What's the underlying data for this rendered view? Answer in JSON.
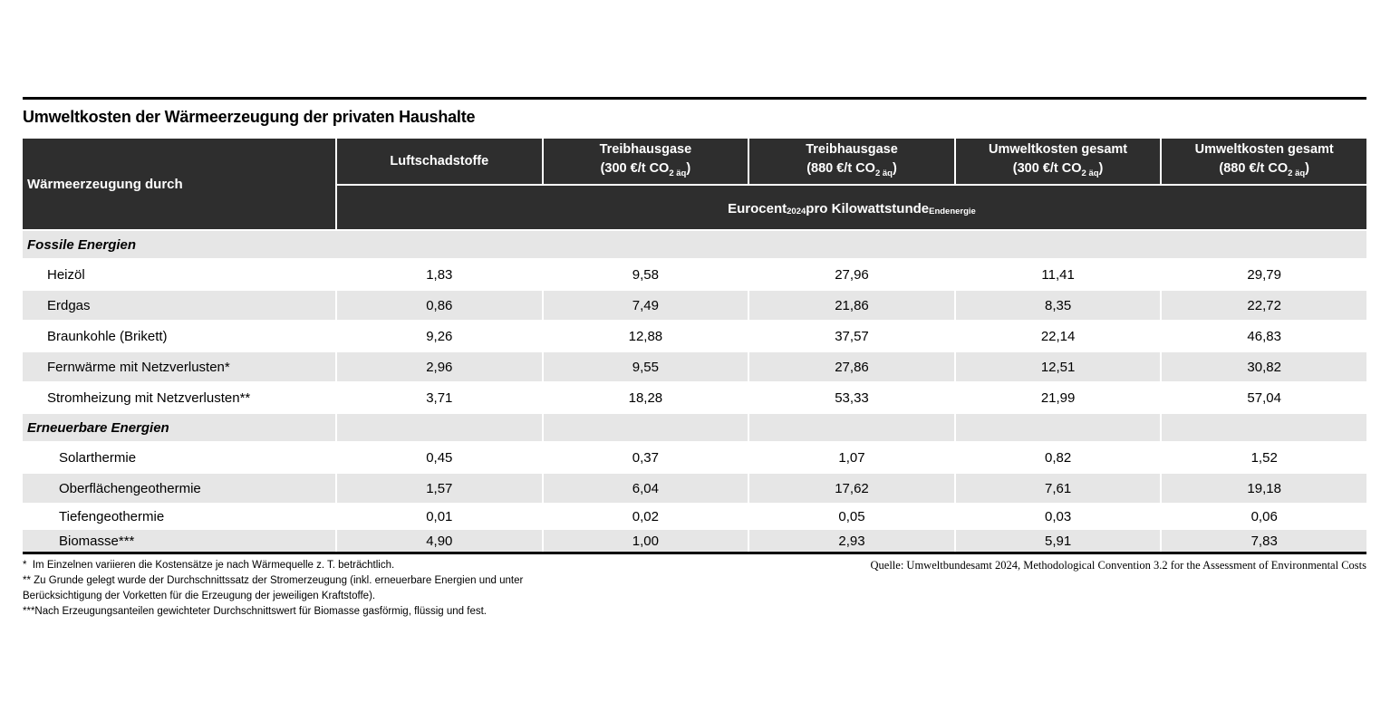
{
  "title": "Umweltkosten der Wärmeerzeugung der privaten Haushalte",
  "colors": {
    "header_bg": "#2e2e2e",
    "header_text": "#ffffff",
    "shaded_row_bg": "#e6e6e6",
    "rule": "#000000",
    "body_text": "#000000"
  },
  "table": {
    "corner_header": "Wärmeerzeugung durch",
    "columns": [
      {
        "line1": "Luftschadstoffe",
        "line2_prefix": "",
        "line2_sub": "",
        "line2_suffix": ""
      },
      {
        "line1": "Treibhausgase",
        "line2_prefix": "(300 €/t CO",
        "line2_sub": "2 äq",
        "line2_suffix": ")"
      },
      {
        "line1": "Treibhausgase",
        "line2_prefix": "(880 €/t CO",
        "line2_sub": "2 äq",
        "line2_suffix": ")"
      },
      {
        "line1": "Umweltkosten gesamt",
        "line2_prefix": "(300 €/t CO",
        "line2_sub": "2 äq",
        "line2_suffix": ")"
      },
      {
        "line1": "Umweltkosten gesamt",
        "line2_prefix": "(880 €/t CO",
        "line2_sub": "2 äq",
        "line2_suffix": ")"
      }
    ],
    "unit_row": {
      "p1": "Eurocent",
      "s1": "2024",
      "p2": " pro Kilowattstunde",
      "s2": "Endenergie"
    },
    "rows": [
      {
        "type": "section",
        "label": "Fossile Energien",
        "merged": true
      },
      {
        "type": "data",
        "label": "Heizöl",
        "values": [
          "1,83",
          "9,58",
          "27,96",
          "11,41",
          "29,79"
        ],
        "shaded": false
      },
      {
        "type": "data",
        "label": "Erdgas",
        "values": [
          "0,86",
          "7,49",
          "21,86",
          "8,35",
          "22,72"
        ],
        "shaded": true
      },
      {
        "type": "data",
        "label": "Braunkohle (Brikett)",
        "values": [
          "9,26",
          "12,88",
          "37,57",
          "22,14",
          "46,83"
        ],
        "shaded": false
      },
      {
        "type": "data",
        "label": "Fernwärme mit Netzverlusten*",
        "values": [
          "2,96",
          "9,55",
          "27,86",
          "12,51",
          "30,82"
        ],
        "shaded": true
      },
      {
        "type": "data",
        "label": "Stromheizung mit Netzverlusten**",
        "values": [
          "3,71",
          "18,28",
          "53,33",
          "21,99",
          "57,04"
        ],
        "shaded": false
      },
      {
        "type": "section",
        "label": "Erneuerbare Energien",
        "merged": false
      },
      {
        "type": "data",
        "label": "Solarthermie",
        "values": [
          "0,45",
          "0,37",
          "1,07",
          "0,82",
          "1,52"
        ],
        "shaded": false
      },
      {
        "type": "data",
        "label": "Oberflächengeothermie",
        "values": [
          "1,57",
          "6,04",
          "17,62",
          "7,61",
          "19,18"
        ],
        "shaded": true
      },
      {
        "type": "data",
        "label": "Tiefengeothermie",
        "values": [
          "0,01",
          "0,02",
          "0,05",
          "0,03",
          "0,06"
        ],
        "shaded": false
      },
      {
        "type": "data",
        "label": "Biomasse***",
        "values": [
          "4,90",
          "1,00",
          "2,93",
          "5,91",
          "7,83"
        ],
        "shaded": true
      }
    ]
  },
  "footnotes": [
    "*  Im Einzelnen variieren die Kostensätze je nach Wärmequelle z. T. beträchtlich.",
    "** Zu Grunde gelegt wurde der Durchschnittssatz der Stromerzeugung (inkl. erneuerbare Energien und unter",
    "Berücksichtigung der Vorketten für die Erzeugung der jeweiligen Kraftstoffe).",
    "***Nach Erzeugungsanteilen gewichteter Durchschnittswert für Biomasse gasförmig, flüssig und fest."
  ],
  "source": "Quelle: Umweltbundesamt 2024, Methodological Convention 3.2 for the Assessment of Environmental Costs",
  "chart_data": {
    "type": "table",
    "title": "Umweltkosten der Wärmeerzeugung der privaten Haushalte",
    "unit": "Eurocent 2024 pro Kilowattstunde Endenergie",
    "columns": [
      "Luftschadstoffe",
      "Treibhausgase (300 €/t CO2 äq)",
      "Treibhausgase (880 €/t CO2 äq)",
      "Umweltkosten gesamt (300 €/t CO2 äq)",
      "Umweltkosten gesamt (880 €/t CO2 äq)"
    ],
    "row_header": "Wärmeerzeugung durch",
    "sections": [
      {
        "name": "Fossile Energien",
        "rows": [
          {
            "label": "Heizöl",
            "values": [
              1.83,
              9.58,
              27.96,
              11.41,
              29.79
            ]
          },
          {
            "label": "Erdgas",
            "values": [
              0.86,
              7.49,
              21.86,
              8.35,
              22.72
            ]
          },
          {
            "label": "Braunkohle (Brikett)",
            "values": [
              9.26,
              12.88,
              37.57,
              22.14,
              46.83
            ]
          },
          {
            "label": "Fernwärme mit Netzverlusten*",
            "values": [
              2.96,
              9.55,
              27.86,
              12.51,
              30.82
            ]
          },
          {
            "label": "Stromheizung mit Netzverlusten**",
            "values": [
              3.71,
              18.28,
              53.33,
              21.99,
              57.04
            ]
          }
        ]
      },
      {
        "name": "Erneuerbare Energien",
        "rows": [
          {
            "label": "Solarthermie",
            "values": [
              0.45,
              0.37,
              1.07,
              0.82,
              1.52
            ]
          },
          {
            "label": "Oberflächengeothermie",
            "values": [
              1.57,
              6.04,
              17.62,
              7.61,
              19.18
            ]
          },
          {
            "label": "Tiefengeothermie",
            "values": [
              0.01,
              0.02,
              0.05,
              0.03,
              0.06
            ]
          },
          {
            "label": "Biomasse***",
            "values": [
              4.9,
              1.0,
              2.93,
              5.91,
              7.83
            ]
          }
        ]
      }
    ],
    "source": "Quelle: Umweltbundesamt 2024, Methodological Convention 3.2 for the Assessment of Environmental Costs"
  }
}
